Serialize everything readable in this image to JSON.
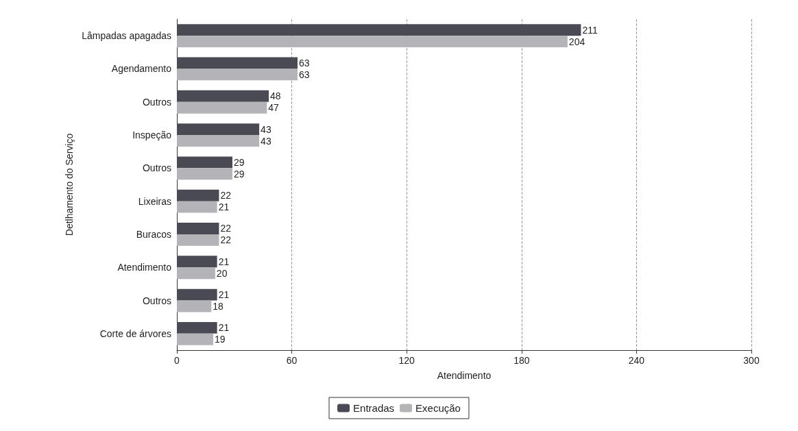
{
  "chart_data": {
    "type": "bar",
    "orientation": "horizontal",
    "xlabel": "Atendimento",
    "ylabel": "Detlhamento do Serviço",
    "categories": [
      "Lâmpadas apagadas",
      "Agendamento",
      "Outros",
      "Inspeção",
      "Outros",
      "Lixeiras",
      "Buracos",
      "Atendimento",
      "Outros",
      "Corte de árvores"
    ],
    "series": [
      {
        "name": "Entradas",
        "color": "#4a4a55",
        "values": [
          211,
          63,
          48,
          43,
          29,
          22,
          22,
          21,
          21,
          21
        ]
      },
      {
        "name": "Execução",
        "color": "#b4b4b8",
        "values": [
          204,
          63,
          47,
          43,
          29,
          21,
          22,
          20,
          18,
          19
        ]
      }
    ],
    "xlim": [
      0,
      300
    ],
    "xticks": [
      0,
      60,
      120,
      180,
      240,
      300
    ],
    "grid": "x",
    "legend": "bottom",
    "data_labels": true
  }
}
